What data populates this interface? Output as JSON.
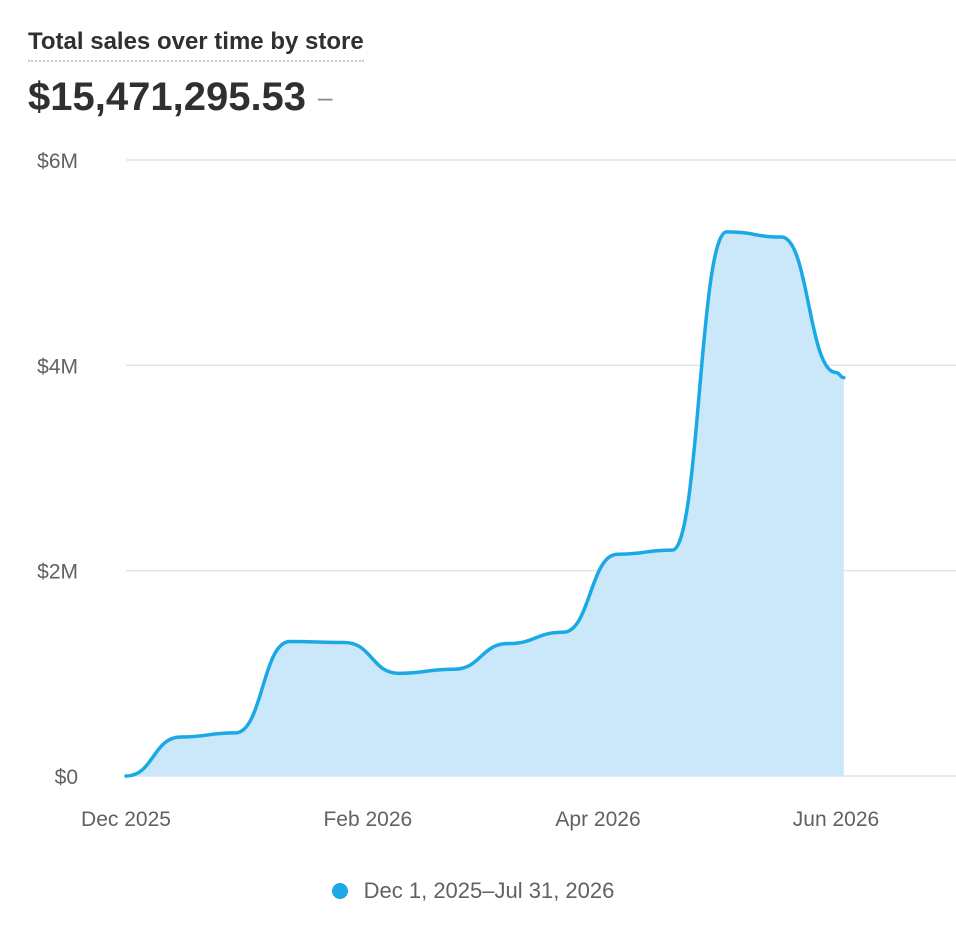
{
  "header": {
    "title": "Total sales over time by store",
    "total_value": "$15,471,295.53",
    "change": "–"
  },
  "legend": {
    "label": "Dec 1, 2025–Jul 31, 2026"
  },
  "colors": {
    "line": "#1ba9e5",
    "area": "#cbe7fa",
    "grid": "#e3e3e3",
    "axis_text": "#616161"
  },
  "chart_data": {
    "type": "area",
    "title": "Total sales over time by store",
    "xlabel": "",
    "ylabel": "",
    "ylim": [
      0,
      6000000
    ],
    "grid": true,
    "legend_position": "bottom-center",
    "y_ticks": [
      {
        "value": 0,
        "label": "$0"
      },
      {
        "value": 2000000,
        "label": "$2M"
      },
      {
        "value": 4000000,
        "label": "$4M"
      },
      {
        "value": 6000000,
        "label": "$6M"
      }
    ],
    "x_ticks": [
      {
        "date": "2025-12-01",
        "label": "Dec 2025"
      },
      {
        "date": "2026-02-01",
        "label": "Feb 2026"
      },
      {
        "date": "2026-04-01",
        "label": "Apr 2026"
      },
      {
        "date": "2026-06-01",
        "label": "Jun 2026"
      }
    ],
    "series": [
      {
        "name": "Dec 1, 2025–Jul 31, 2026",
        "points": [
          {
            "date": "2025-12-01",
            "value": 0
          },
          {
            "date": "2025-12-15",
            "value": 380000
          },
          {
            "date": "2025-12-29",
            "value": 420000
          },
          {
            "date": "2026-01-12",
            "value": 1310000
          },
          {
            "date": "2026-01-26",
            "value": 1300000
          },
          {
            "date": "2026-02-09",
            "value": 1000000
          },
          {
            "date": "2026-02-23",
            "value": 1040000
          },
          {
            "date": "2026-03-09",
            "value": 1290000
          },
          {
            "date": "2026-03-23",
            "value": 1400000
          },
          {
            "date": "2026-04-06",
            "value": 2160000
          },
          {
            "date": "2026-04-20",
            "value": 2200000
          },
          {
            "date": "2026-05-04",
            "value": 5300000
          },
          {
            "date": "2026-05-18",
            "value": 5250000
          },
          {
            "date": "2026-06-01",
            "value": 3930000
          },
          {
            "date": "2026-06-03",
            "value": 3880000
          }
        ]
      }
    ]
  }
}
